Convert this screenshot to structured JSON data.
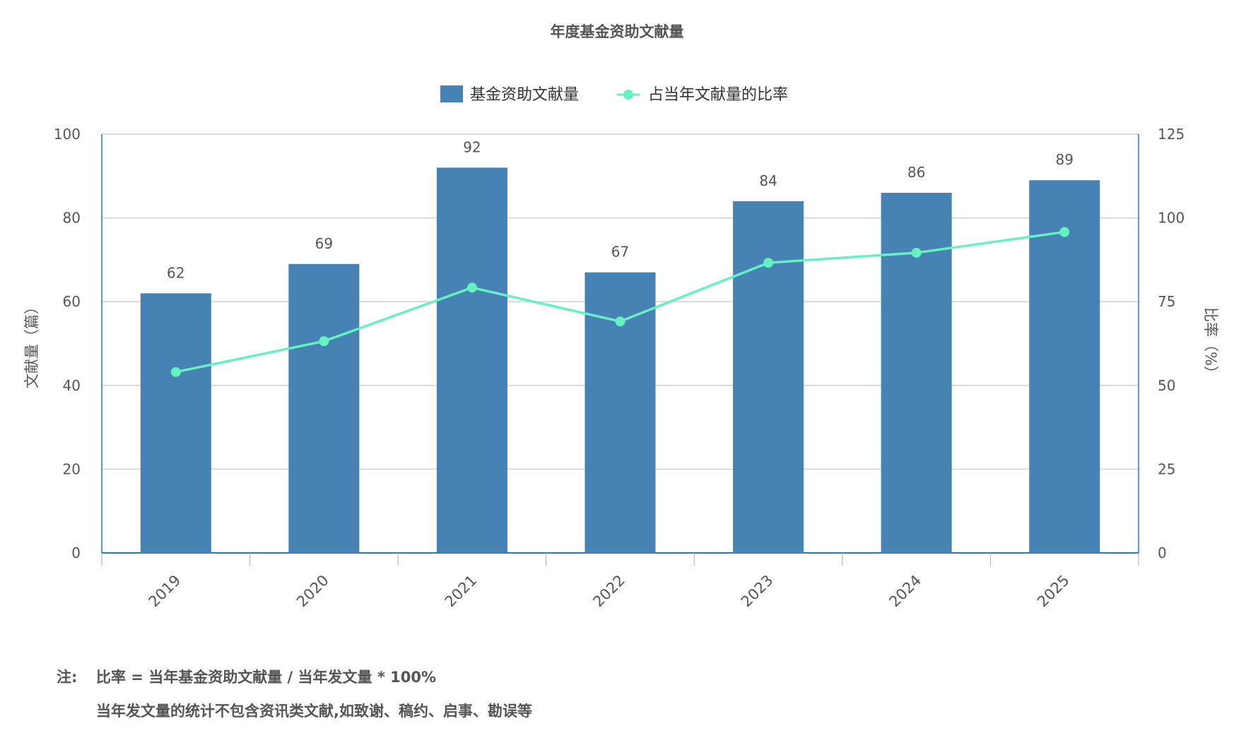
{
  "chart_data": {
    "type": "bar+line",
    "title": "年度基金资助文献量",
    "categories": [
      "2019",
      "2020",
      "2021",
      "2022",
      "2023",
      "2024",
      "2025"
    ],
    "series": [
      {
        "name": "基金资助文献量",
        "type": "bar",
        "axis": "left",
        "values": [
          62,
          69,
          92,
          67,
          84,
          86,
          89
        ],
        "color": "#4682b4"
      },
      {
        "name": "占当年文献量的比率",
        "type": "line",
        "axis": "right",
        "values": [
          54.0,
          63.2,
          79.2,
          69.1,
          86.6,
          89.6,
          95.8
        ],
        "color": "#66f2c0"
      }
    ],
    "ylabel": "文献量（篇）",
    "y2label": "比率（%）",
    "ylim": [
      0,
      100
    ],
    "y2lim": [
      0,
      125
    ],
    "yticks": [
      "0",
      "20",
      "40",
      "60",
      "80",
      "100"
    ],
    "y2ticks": [
      "0",
      "25",
      "50",
      "75",
      "100",
      "125"
    ],
    "legend": "top-center",
    "grid": true
  },
  "notes": {
    "prefix": "注:",
    "line1": "比率 = 当年基金资助文献量 / 当年发文量 * 100%",
    "line2": "当年发文量的统计不包含资讯类文献,如致谢、稿约、启事、勘误等"
  }
}
